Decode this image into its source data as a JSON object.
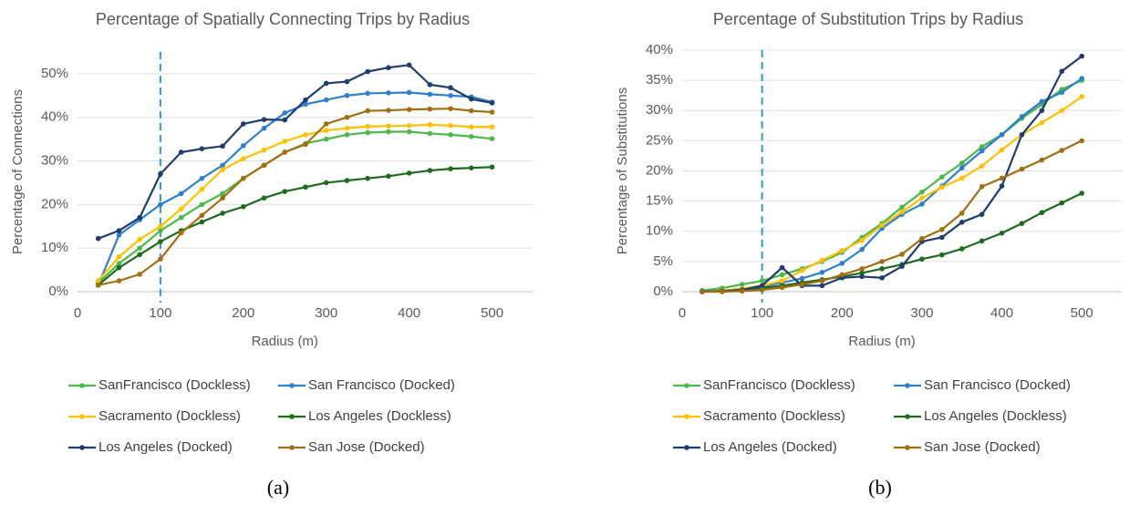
{
  "chart_data": [
    {
      "type": "line",
      "title": "Percentage of Spatially Connecting Trips by Radius",
      "x_label": "Radius (m)",
      "y_label": "Percentage of Connections",
      "caption": "(a)",
      "x": [
        25,
        50,
        75,
        100,
        125,
        150,
        175,
        200,
        225,
        250,
        275,
        300,
        325,
        350,
        375,
        400,
        425,
        450,
        475,
        500
      ],
      "xlim": [
        0,
        550
      ],
      "xticks": [
        0,
        100,
        200,
        300,
        400,
        500
      ],
      "ylim": [
        0,
        55
      ],
      "yticks": [
        {
          "value": 0,
          "label": "0%"
        },
        {
          "value": 10,
          "label": "10%"
        },
        {
          "value": 20,
          "label": "20%"
        },
        {
          "value": 30,
          "label": "30%"
        },
        {
          "value": 40,
          "label": "40%"
        },
        {
          "value": 50,
          "label": "50%"
        }
      ],
      "grid": true,
      "vline": 100,
      "vline_color": "#2e9bd6",
      "series": [
        {
          "name": "SanFrancisco (Dockless)",
          "color": "#4cb848",
          "values": [
            2,
            6.5,
            10,
            14,
            17,
            20,
            22.5,
            26,
            29,
            32,
            34,
            35,
            36,
            36.5,
            36.7,
            36.7,
            36.3,
            36,
            35.6,
            35.1
          ]
        },
        {
          "name": "San Francisco (Docked)",
          "color": "#2e7fd0",
          "values": [
            1.5,
            13,
            16.5,
            20,
            22.5,
            26,
            29,
            33.5,
            37.5,
            41,
            43,
            44,
            45,
            45.5,
            45.6,
            45.7,
            45.3,
            45,
            44.7,
            43.5
          ]
        },
        {
          "name": "Sacramento (Dockless)",
          "color": "#ffc000",
          "values": [
            2.5,
            8,
            12,
            15,
            19,
            23.5,
            28,
            30.5,
            32.5,
            34.5,
            36,
            37,
            37.5,
            37.9,
            38,
            38.1,
            38.3,
            38.1,
            37.8,
            37.8
          ]
        },
        {
          "name": "Los Angeles (Dockless)",
          "color": "#1e6b1e",
          "values": [
            1.5,
            5.5,
            8.5,
            11.5,
            14,
            16,
            18,
            19.5,
            21.5,
            23,
            24,
            25,
            25.5,
            26,
            26.5,
            27.2,
            27.8,
            28.2,
            28.4,
            28.6
          ]
        },
        {
          "name": "Los Angeles (Docked)",
          "color": "#1f3d6e",
          "values": [
            12.2,
            14,
            17,
            27,
            32,
            32.8,
            33.4,
            38.5,
            39.5,
            39.4,
            44,
            47.8,
            48.2,
            50.5,
            51.4,
            52,
            47.5,
            46.8,
            44.2,
            43.3
          ]
        },
        {
          "name": "San Jose (Docked)",
          "color": "#a36e12",
          "values": [
            1.5,
            2.5,
            4,
            7.5,
            13.5,
            17.5,
            21.5,
            26,
            29,
            32,
            33.8,
            38.5,
            40,
            41.5,
            41.6,
            41.8,
            41.9,
            42,
            41.5,
            41.2
          ]
        }
      ]
    },
    {
      "type": "line",
      "title": "Percentage of Substitution Trips by Radius",
      "x_label": "Radius (m)",
      "y_label": "Percentage of Substitutions",
      "caption": "(b)",
      "x": [
        25,
        50,
        75,
        100,
        125,
        150,
        175,
        200,
        225,
        250,
        275,
        300,
        325,
        350,
        375,
        400,
        425,
        450,
        475,
        500
      ],
      "xlim": [
        0,
        550
      ],
      "xticks": [
        0,
        100,
        200,
        300,
        400,
        500
      ],
      "ylim": [
        0,
        40
      ],
      "yticks": [
        {
          "value": 0,
          "label": "0%"
        },
        {
          "value": 5,
          "label": "5%"
        },
        {
          "value": 10,
          "label": "10%"
        },
        {
          "value": 15,
          "label": "15%"
        },
        {
          "value": 20,
          "label": "20%"
        },
        {
          "value": 25,
          "label": "25%"
        },
        {
          "value": 30,
          "label": "30%"
        },
        {
          "value": 35,
          "label": "35%"
        },
        {
          "value": 40,
          "label": "40%"
        }
      ],
      "grid": true,
      "vline": 100,
      "vline_color": "#2e9bd6",
      "series": [
        {
          "name": "SanFrancisco (Dockless)",
          "color": "#4cb848",
          "values": [
            0.2,
            0.6,
            1.2,
            1.8,
            2.8,
            3.8,
            5,
            6.5,
            9,
            11.3,
            14,
            16.5,
            19,
            21.3,
            24,
            26,
            28.7,
            31,
            33.5,
            35
          ]
        },
        {
          "name": "San Francisco (Docked)",
          "color": "#2e7fd0",
          "values": [
            0.1,
            0.2,
            0.4,
            0.8,
            1.5,
            2.2,
            3.2,
            4.7,
            7,
            10.5,
            12.8,
            14.5,
            17.5,
            20.5,
            23.3,
            26,
            29,
            31.5,
            33,
            35.3
          ]
        },
        {
          "name": "Sacramento (Dockless)",
          "color": "#ffc000",
          "values": [
            0,
            0.2,
            0.5,
            1,
            1.8,
            3.5,
            5.2,
            6.8,
            8.5,
            11,
            13.2,
            15.5,
            17.3,
            18.8,
            20.8,
            23.5,
            26,
            28,
            30,
            32.3
          ]
        },
        {
          "name": "Los Angeles (Dockless)",
          "color": "#1e6b1e",
          "values": [
            0,
            0.1,
            0.3,
            0.6,
            1,
            1.5,
            2,
            2.5,
            3.1,
            3.8,
            4.5,
            5.4,
            6.1,
            7.1,
            8.4,
            9.7,
            11.3,
            13.1,
            14.7,
            16.3
          ]
        },
        {
          "name": "Los Angeles (Docked)",
          "color": "#1f3d6e",
          "values": [
            0,
            0.1,
            0.3,
            1,
            4,
            1,
            1,
            2.3,
            2.5,
            2.3,
            4.2,
            8.3,
            9,
            11.5,
            12.8,
            17.5,
            26,
            30,
            36.5,
            39
          ]
        },
        {
          "name": "San Jose (Docked)",
          "color": "#a36e12",
          "values": [
            0,
            0,
            0.1,
            0.3,
            0.7,
            1.2,
            1.8,
            2.8,
            3.8,
            5,
            6.2,
            8.8,
            10.3,
            13,
            17.4,
            18.8,
            20.3,
            21.8,
            23.4,
            25
          ]
        }
      ]
    }
  ]
}
